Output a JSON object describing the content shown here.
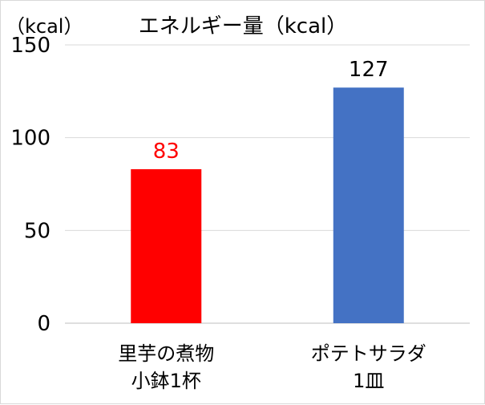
{
  "chart_data": {
    "type": "bar",
    "title": "エネルギー量（kcal）",
    "unit_label": "（kcal）",
    "ylim": [
      0,
      150
    ],
    "yticks": [
      0,
      50,
      100,
      150
    ],
    "grid": true,
    "legend": "none",
    "categories": [
      {
        "line1": "里芋の煮物",
        "line2": "小鉢1杯"
      },
      {
        "line1": "ポテトサラダ",
        "line2": "1皿"
      }
    ],
    "values": [
      83,
      127
    ],
    "colors": [
      "#ff0000",
      "#4472c4"
    ],
    "label_colors": [
      "#ff0000",
      "#000000"
    ]
  }
}
